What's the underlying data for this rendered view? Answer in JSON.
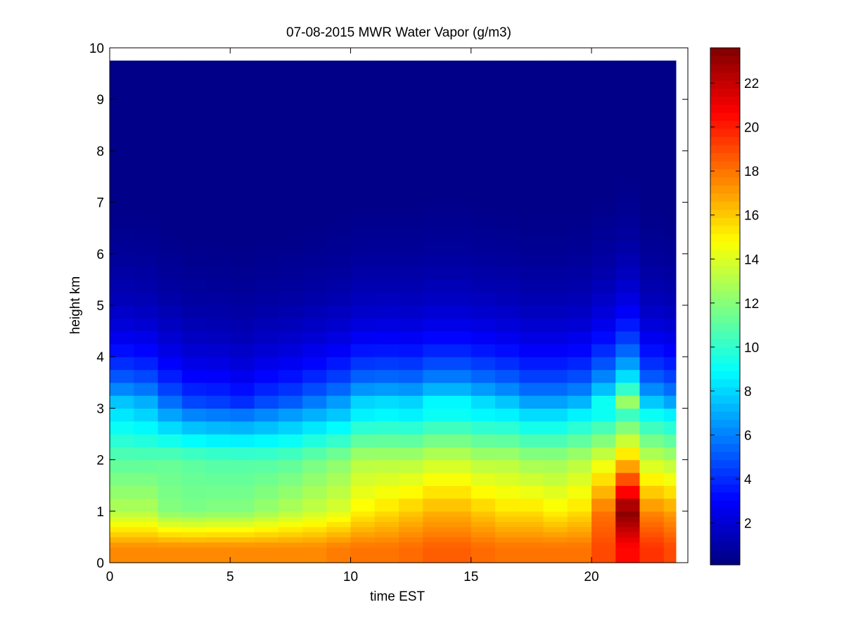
{
  "chart_data": {
    "type": "heatmap",
    "title": "07-08-2015 MWR Water Vapor (g/m3)",
    "xlabel": "time EST",
    "ylabel": "height km",
    "xlim": [
      0,
      24
    ],
    "ylim": [
      0,
      10
    ],
    "x_ticks": [
      0,
      5,
      10,
      15,
      20
    ],
    "y_ticks": [
      0,
      1,
      2,
      3,
      4,
      5,
      6,
      7,
      8,
      9,
      10
    ],
    "colorbar": {
      "colormap": "jet",
      "range": [
        0.1,
        23.6
      ],
      "ticks": [
        2,
        4,
        6,
        8,
        10,
        12,
        14,
        16,
        18,
        20,
        22
      ]
    },
    "time_hours": [
      0.5,
      1.5,
      2.5,
      3.5,
      4.5,
      5.5,
      6.5,
      7.5,
      8.5,
      9.5,
      10.5,
      11.5,
      12.5,
      13.5,
      14.5,
      15.5,
      16.5,
      17.5,
      18.5,
      19.5,
      20.5,
      21.5,
      22.5,
      23.5
    ],
    "height_levels_km": [
      0,
      0.1,
      0.2,
      0.3,
      0.4,
      0.5,
      0.6,
      0.7,
      0.8,
      0.9,
      1.0,
      1.25,
      1.5,
      1.75,
      2.0,
      2.25,
      2.5,
      2.75,
      3.0,
      3.25,
      3.5,
      3.75,
      4.0,
      4.25,
      4.5,
      4.75,
      5.0,
      5.25,
      5.5,
      5.75,
      6.0,
      6.25,
      6.5,
      6.75,
      7.0,
      7.25,
      7.5,
      7.75,
      8.0,
      8.25,
      8.5,
      8.75,
      9.0,
      9.25,
      9.5,
      9.75
    ],
    "data_top_km": 9.75,
    "data_end_hour": 23.5,
    "profiles_note_units": "g/m3",
    "profiles": [
      {
        "time": 0.5,
        "surface": 17.5,
        "h1": 13.0,
        "h2": 11.0,
        "h3": 8.0,
        "scale_above3": 1.05
      },
      {
        "time": 1.5,
        "surface": 17.5,
        "h1": 13.0,
        "h2": 11.0,
        "h3": 7.5,
        "scale_above3": 1.05
      },
      {
        "time": 2.5,
        "surface": 17.5,
        "h1": 12.0,
        "h2": 11.2,
        "h3": 6.2,
        "scale_above3": 1.0
      },
      {
        "time": 3.5,
        "surface": 17.5,
        "h1": 11.8,
        "h2": 11.0,
        "h3": 5.4,
        "scale_above3": 0.95
      },
      {
        "time": 4.5,
        "surface": 17.5,
        "h1": 12.0,
        "h2": 10.8,
        "h3": 5.2,
        "scale_above3": 0.95
      },
      {
        "time": 5.5,
        "surface": 17.5,
        "h1": 12.0,
        "h2": 10.8,
        "h3": 5.0,
        "scale_above3": 0.9
      },
      {
        "time": 6.5,
        "surface": 17.5,
        "h1": 12.5,
        "h2": 10.8,
        "h3": 5.5,
        "scale_above3": 0.95
      },
      {
        "time": 7.5,
        "surface": 17.5,
        "h1": 13.0,
        "h2": 11.0,
        "h3": 6.0,
        "scale_above3": 0.95
      },
      {
        "time": 8.5,
        "surface": 17.5,
        "h1": 13.5,
        "h2": 11.5,
        "h3": 6.5,
        "scale_above3": 1.0
      },
      {
        "time": 9.5,
        "surface": 17.8,
        "h1": 14.0,
        "h2": 12.0,
        "h3": 7.0,
        "scale_above3": 1.05
      },
      {
        "time": 10.5,
        "surface": 18.0,
        "h1": 15.0,
        "h2": 13.0,
        "h3": 8.0,
        "scale_above3": 1.1
      },
      {
        "time": 11.5,
        "surface": 18.0,
        "h1": 15.5,
        "h2": 13.0,
        "h3": 8.2,
        "scale_above3": 1.1
      },
      {
        "time": 12.5,
        "surface": 18.2,
        "h1": 16.0,
        "h2": 13.0,
        "h3": 8.0,
        "scale_above3": 1.1
      },
      {
        "time": 13.5,
        "surface": 18.5,
        "h1": 16.5,
        "h2": 13.5,
        "h3": 8.5,
        "scale_above3": 1.15
      },
      {
        "time": 14.5,
        "surface": 18.5,
        "h1": 16.5,
        "h2": 13.5,
        "h3": 8.5,
        "scale_above3": 1.15
      },
      {
        "time": 15.5,
        "surface": 18.2,
        "h1": 16.0,
        "h2": 13.0,
        "h3": 8.2,
        "scale_above3": 1.1
      },
      {
        "time": 16.5,
        "surface": 18.0,
        "h1": 15.5,
        "h2": 13.0,
        "h3": 8.0,
        "scale_above3": 1.05
      },
      {
        "time": 17.5,
        "surface": 18.0,
        "h1": 15.5,
        "h2": 12.5,
        "h3": 7.5,
        "scale_above3": 1.0
      },
      {
        "time": 18.5,
        "surface": 18.0,
        "h1": 15.0,
        "h2": 12.5,
        "h3": 7.5,
        "scale_above3": 1.0
      },
      {
        "time": 19.5,
        "surface": 18.0,
        "h1": 15.5,
        "h2": 13.0,
        "h3": 8.0,
        "scale_above3": 1.0
      },
      {
        "time": 20.5,
        "surface": 19.0,
        "h1": 18.0,
        "h2": 14.0,
        "h3": 8.5,
        "scale_above3": 1.2
      },
      {
        "time": 21.5,
        "surface": 20.5,
        "h1": 23.5,
        "h2": 16.0,
        "h3": 9.5,
        "scale_above3": 1.45
      },
      {
        "time": 22.5,
        "surface": 19.5,
        "h1": 17.5,
        "h2": 13.5,
        "h3": 8.5,
        "scale_above3": 1.0
      },
      {
        "time": 23.5,
        "surface": 19.0,
        "h1": 17.0,
        "h2": 13.0,
        "h3": 8.0,
        "scale_above3": 0.95
      }
    ]
  }
}
